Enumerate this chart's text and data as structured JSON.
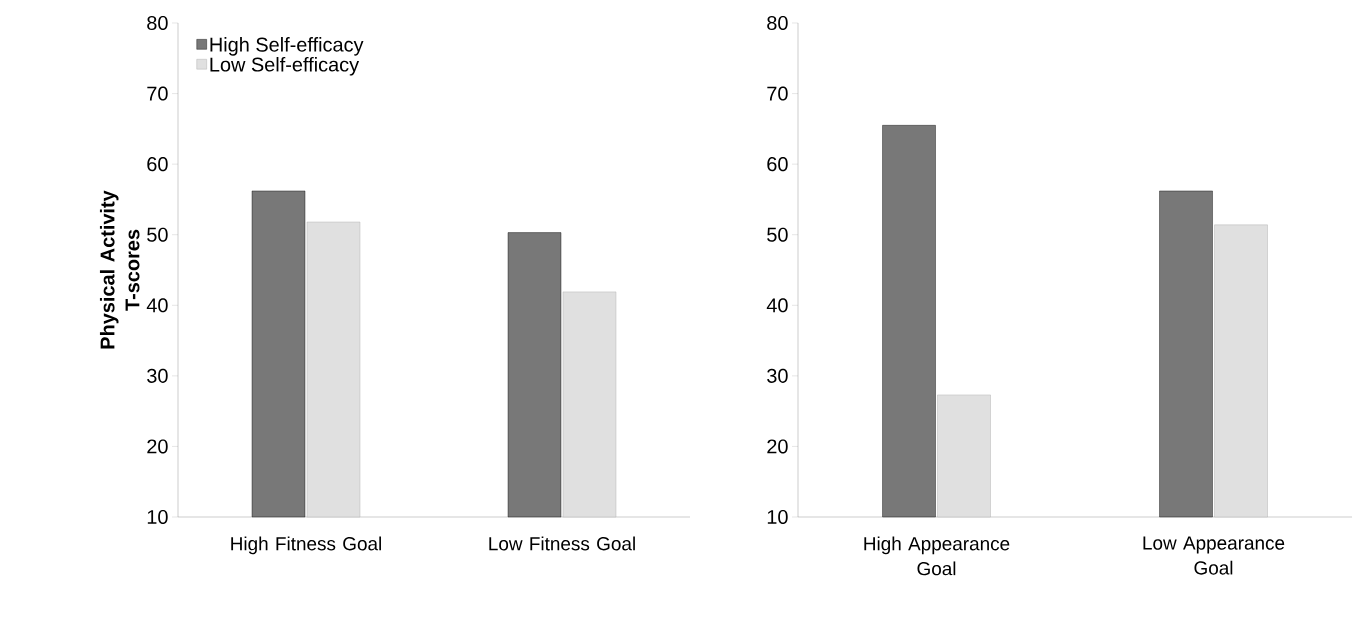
{
  "chart_data": [
    {
      "type": "bar",
      "categories": [
        "High Fitness Goal",
        "Low Fitness Goal"
      ],
      "ylabel": "Physical Activity T-scores",
      "ylim": [
        10,
        80
      ],
      "yticks": [
        10,
        20,
        30,
        40,
        50,
        60,
        70,
        80
      ],
      "legend": "top left",
      "grid": false,
      "series": [
        {
          "name": "High Self-efficacy",
          "color": "#787878",
          "values": [
            56.2,
            50.3
          ]
        },
        {
          "name": "Low Self-efficacy",
          "color": "#e0e0e0",
          "values": [
            51.8,
            41.9
          ]
        }
      ]
    },
    {
      "type": "bar",
      "categories": [
        "High Appearance Goal",
        "Low Appearance Goal"
      ],
      "ylim": [
        10,
        80
      ],
      "yticks": [
        10,
        20,
        30,
        40,
        50,
        60,
        70,
        80
      ],
      "grid": false,
      "series": [
        {
          "color": "#787878",
          "values": [
            65.5,
            56.2
          ]
        },
        {
          "color": "#e0e0e0",
          "values": [
            27.3,
            51.4
          ]
        }
      ]
    }
  ]
}
